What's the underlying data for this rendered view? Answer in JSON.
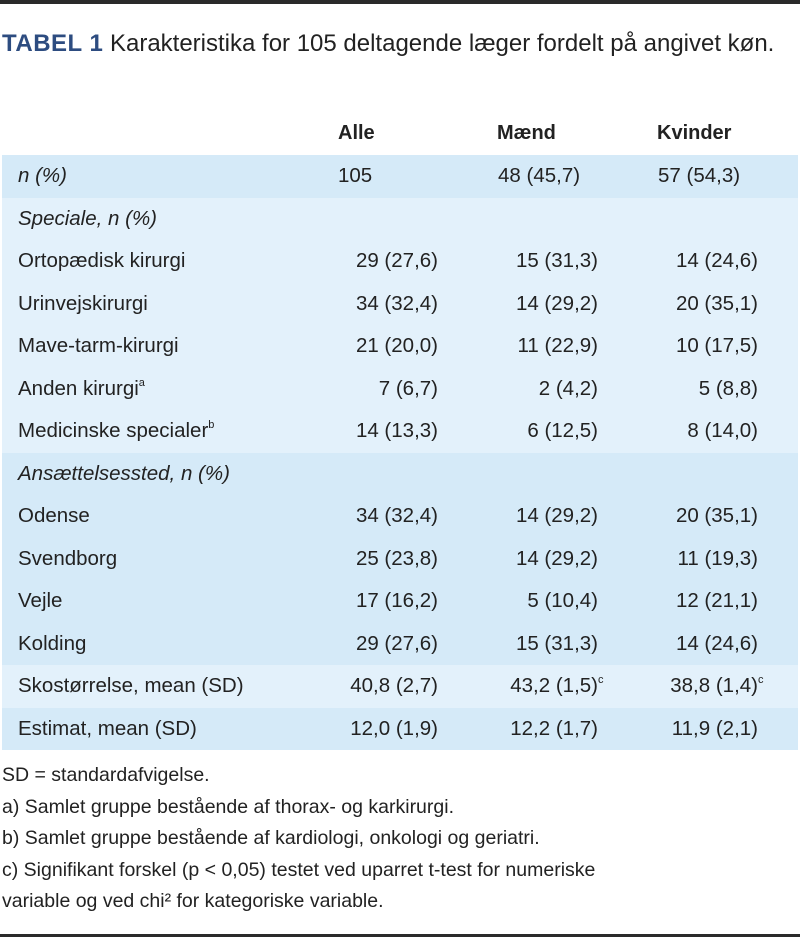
{
  "title": {
    "label": "TABEL 1",
    "text": "Karakteristika for 105 deltagende læger fordelt på angivet køn."
  },
  "columns": [
    "Alle",
    "Mænd",
    "Kvinder"
  ],
  "rows": [
    {
      "label": "n (%)",
      "italic": true,
      "values": [
        "105",
        "48 (45,7)",
        "57 (54,3)"
      ],
      "sup": [
        "",
        "",
        ""
      ]
    },
    {
      "label": "Speciale, n (%)",
      "italic": true,
      "values": [
        "",
        "",
        ""
      ],
      "sup": [
        "",
        "",
        ""
      ]
    },
    {
      "label": "Ortopædisk kirurgi",
      "values": [
        "29 (27,6)",
        "15 (31,3)",
        "14 (24,6)"
      ],
      "sup": [
        "",
        "",
        ""
      ]
    },
    {
      "label": "Urinvejskirurgi",
      "values": [
        "34 (32,4)",
        "14 (29,2)",
        "20 (35,1)"
      ],
      "sup": [
        "",
        "",
        ""
      ]
    },
    {
      "label": "Mave-tarm-kirurgi",
      "values": [
        "21 (20,0)",
        "11 (22,9)",
        "10 (17,5)"
      ],
      "sup": [
        "",
        "",
        ""
      ]
    },
    {
      "label": "Anden kirurgi",
      "label_sup": "a",
      "values": [
        "7 (6,7)",
        "2 (4,2)",
        "5 (8,8)"
      ],
      "sup": [
        "",
        "",
        ""
      ]
    },
    {
      "label": "Medicinske specialer",
      "label_sup": "b",
      "values": [
        "14 (13,3)",
        "6 (12,5)",
        "8 (14,0)"
      ],
      "sup": [
        "",
        "",
        ""
      ]
    },
    {
      "label": "Ansættelsessted, n (%)",
      "italic": true,
      "values": [
        "",
        "",
        ""
      ],
      "sup": [
        "",
        "",
        ""
      ]
    },
    {
      "label": "Odense",
      "values": [
        "34 (32,4)",
        "14 (29,2)",
        "20 (35,1)"
      ],
      "sup": [
        "",
        "",
        ""
      ]
    },
    {
      "label": "Svendborg",
      "values": [
        "25 (23,8)",
        "14 (29,2)",
        "11 (19,3)"
      ],
      "sup": [
        "",
        "",
        ""
      ]
    },
    {
      "label": "Vejle",
      "values": [
        "17 (16,2)",
        "5 (10,4)",
        "12 (21,1)"
      ],
      "sup": [
        "",
        "",
        ""
      ]
    },
    {
      "label": "Kolding",
      "values": [
        "29 (27,6)",
        "15 (31,3)",
        "14 (24,6)"
      ],
      "sup": [
        "",
        "",
        ""
      ]
    },
    {
      "label": "Skostørrelse, mean (SD)",
      "values": [
        "40,8 (2,7)",
        "43,2 (1,5)",
        "38,8 (1,4)"
      ],
      "sup": [
        "",
        "c",
        "c"
      ]
    },
    {
      "label": "Estimat, mean (SD)",
      "values": [
        "12,0 (1,9)",
        "12,2 (1,7)",
        "11,9 (2,1)"
      ],
      "sup": [
        "",
        "",
        ""
      ]
    }
  ],
  "notes": [
    "SD = standardafvigelse.",
    "a) Samlet gruppe bestående af thorax- og karkirurgi.",
    "b) Samlet gruppe bestående af kardiologi, onkologi og geriatri.",
    "c) Signifikant forskel (p < 0,05) testet ved uparret t-test for numeriske",
    "variable og ved chi² for kategoriske variable."
  ],
  "colors": {
    "title_label": "#2d4c80",
    "band_dark": "#d5eaf8",
    "band_light": "#e3f1fb"
  }
}
